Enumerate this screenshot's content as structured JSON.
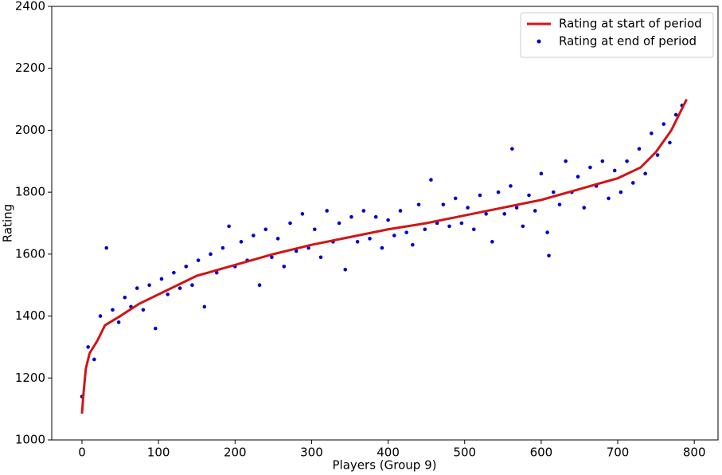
{
  "chart_data": {
    "type": "line",
    "x_label": "Players (Group 9)",
    "y_label": "Rating",
    "xlim": [
      -39.5,
      831
    ],
    "ylim": [
      1000,
      2400
    ],
    "xticks": [
      0,
      100,
      200,
      300,
      400,
      500,
      600,
      700,
      800
    ],
    "yticks": [
      1000,
      1200,
      1400,
      1600,
      1800,
      2000,
      2200,
      2400
    ],
    "legend": "upper right",
    "series": [
      {
        "name": "Rating at start of period",
        "type": "line",
        "color": "#d01515",
        "x": [
          0,
          2,
          5,
          10,
          20,
          30,
          50,
          75,
          100,
          150,
          200,
          250,
          300,
          350,
          400,
          450,
          500,
          550,
          600,
          650,
          700,
          730,
          750,
          770,
          780,
          790
        ],
        "values": [
          1085,
          1150,
          1230,
          1280,
          1320,
          1370,
          1400,
          1440,
          1470,
          1530,
          1565,
          1600,
          1630,
          1655,
          1680,
          1700,
          1725,
          1750,
          1775,
          1810,
          1845,
          1880,
          1930,
          2000,
          2050,
          2100
        ]
      },
      {
        "name": "Rating at end of period",
        "type": "scatter",
        "color": "#0000cc",
        "x": [
          0,
          8,
          16,
          24,
          32,
          40,
          48,
          56,
          64,
          72,
          80,
          88,
          96,
          104,
          112,
          120,
          128,
          136,
          144,
          152,
          160,
          168,
          176,
          184,
          192,
          200,
          208,
          216,
          224,
          232,
          240,
          248,
          256,
          264,
          272,
          280,
          288,
          296,
          304,
          312,
          320,
          328,
          336,
          344,
          352,
          360,
          368,
          376,
          384,
          392,
          400,
          408,
          416,
          424,
          432,
          440,
          448,
          456,
          464,
          472,
          480,
          488,
          496,
          504,
          512,
          520,
          528,
          536,
          544,
          552,
          560,
          562,
          568,
          576,
          584,
          592,
          600,
          608,
          610,
          616,
          624,
          632,
          640,
          648,
          656,
          664,
          672,
          680,
          688,
          696,
          704,
          712,
          720,
          728,
          736,
          744,
          752,
          760,
          768,
          776,
          784
        ],
        "values": [
          1140,
          1300,
          1260,
          1400,
          1620,
          1420,
          1380,
          1460,
          1430,
          1490,
          1420,
          1500,
          1360,
          1520,
          1470,
          1540,
          1490,
          1560,
          1500,
          1580,
          1430,
          1600,
          1540,
          1620,
          1690,
          1560,
          1640,
          1580,
          1660,
          1500,
          1680,
          1590,
          1650,
          1560,
          1700,
          1610,
          1730,
          1620,
          1680,
          1590,
          1740,
          1640,
          1700,
          1550,
          1720,
          1640,
          1740,
          1650,
          1720,
          1620,
          1710,
          1660,
          1740,
          1670,
          1630,
          1760,
          1680,
          1840,
          1700,
          1760,
          1690,
          1780,
          1700,
          1750,
          1680,
          1790,
          1730,
          1640,
          1800,
          1730,
          1820,
          1940,
          1750,
          1690,
          1790,
          1740,
          1860,
          1670,
          1595,
          1800,
          1760,
          1900,
          1800,
          1850,
          1750,
          1880,
          1820,
          1900,
          1780,
          1870,
          1800,
          1900,
          1830,
          1940,
          1860,
          1990,
          1920,
          2020,
          1960,
          2050,
          2080
        ]
      }
    ]
  }
}
